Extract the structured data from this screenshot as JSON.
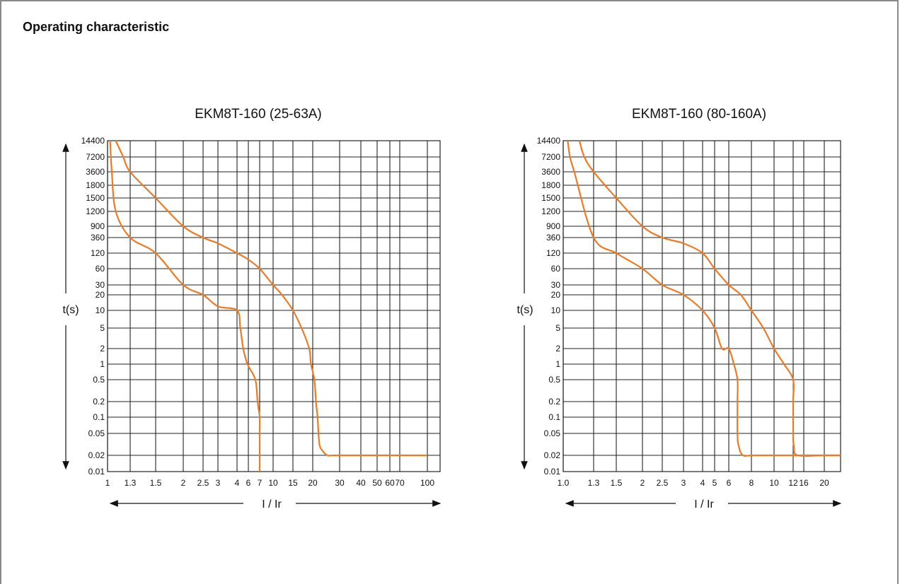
{
  "section_title": "Operating characteristic",
  "colors": {
    "curve": "#ee7a22",
    "grid": "#222222",
    "text": "#111111"
  },
  "chart_data": [
    {
      "type": "line",
      "title": "EKM8T-160 (25-63A)",
      "xlabel": "I / Ir",
      "ylabel": "t(s)",
      "x_ticks": [
        "1",
        "1.3",
        "1.5",
        "2",
        "2.5",
        "3",
        "4",
        "6",
        "7",
        "10",
        "15",
        "20",
        "30",
        "40",
        "50",
        "60",
        "70",
        "100"
      ],
      "y_ticks": [
        "14400",
        "7200",
        "3600",
        "1800",
        "1500",
        "1200",
        "900",
        "360",
        "120",
        "60",
        "30",
        "20",
        "10",
        "5",
        "2",
        "1",
        "0.5",
        "0.2",
        "0.1",
        "0.05",
        "0.02",
        "0.01"
      ],
      "xlim": [
        1,
        100
      ],
      "ylim": [
        0.01,
        14400
      ],
      "series": [
        {
          "x": [
            1.03,
            1.05,
            1.1,
            1.3,
            1.5,
            2.0,
            2.5,
            3.0,
            4.0,
            4.5,
            5.0,
            5.8,
            6.6,
            6.8,
            7.0,
            7.0,
            7.0,
            7.0
          ],
          "y": [
            14400,
            3600,
            1200,
            360,
            120,
            30,
            20,
            12,
            10,
            5,
            2,
            1,
            0.5,
            0.2,
            0.1,
            0.05,
            0.02,
            0.01
          ]
        },
        {
          "x": [
            1.1,
            1.2,
            1.3,
            1.5,
            2.0,
            2.5,
            3.0,
            4.0,
            6.0,
            7.0,
            10.0,
            12.0,
            15.0,
            17.0,
            19.0,
            19.5,
            20.5,
            21.0,
            21.5,
            21.8,
            22.2,
            23.0,
            25.0,
            30.0,
            100.0
          ],
          "y": [
            14400,
            7200,
            3600,
            1500,
            900,
            360,
            240,
            120,
            90,
            60,
            30,
            20,
            10,
            5,
            2,
            1,
            0.5,
            0.2,
            0.1,
            0.05,
            0.03,
            0.025,
            0.02,
            0.02,
            0.02
          ]
        }
      ]
    },
    {
      "type": "line",
      "title": "EKM8T-160 (80-160A)",
      "xlabel": "I / Ir",
      "ylabel": "t(s)",
      "x_ticks": [
        "1.0",
        "1.3",
        "1.5",
        "2",
        "2.5",
        "3",
        "4",
        "5",
        "6",
        "8",
        "10",
        "12",
        "16",
        "20"
      ],
      "y_ticks": [
        "14400",
        "7200",
        "3600",
        "1800",
        "1500",
        "1200",
        "900",
        "360",
        "120",
        "60",
        "30",
        "20",
        "10",
        "5",
        "2",
        "1",
        "0.5",
        "0.2",
        "0.1",
        "0.05",
        "0.02",
        "0.01"
      ],
      "xlim": [
        1,
        26
      ],
      "ylim": [
        0.01,
        14400
      ],
      "series": [
        {
          "x": [
            1.04,
            1.06,
            1.1,
            1.3,
            1.5,
            2.0,
            2.5,
            3.0,
            4.0,
            5.0,
            5.5,
            6.0,
            6.4,
            6.7,
            6.7,
            6.7,
            6.8,
            7.2,
            8.5,
            26.0
          ],
          "y": [
            14400,
            7200,
            3600,
            360,
            120,
            60,
            30,
            20,
            10,
            5,
            2,
            2,
            1,
            0.5,
            0.2,
            0.05,
            0.03,
            0.02,
            0.02,
            0.02
          ]
        },
        {
          "x": [
            1.15,
            1.2,
            1.3,
            1.5,
            2.0,
            2.5,
            3.0,
            4.0,
            5.0,
            6.0,
            7.0,
            8.0,
            9.0,
            10.0,
            11.0,
            12.0,
            12.0,
            12.0,
            12.2,
            13.5,
            20.0,
            26.0
          ],
          "y": [
            14400,
            7200,
            3600,
            1500,
            900,
            360,
            240,
            120,
            60,
            30,
            20,
            10,
            5,
            2,
            1,
            0.5,
            0.2,
            0.05,
            0.03,
            0.02,
            0.02,
            0.02
          ]
        }
      ]
    }
  ]
}
